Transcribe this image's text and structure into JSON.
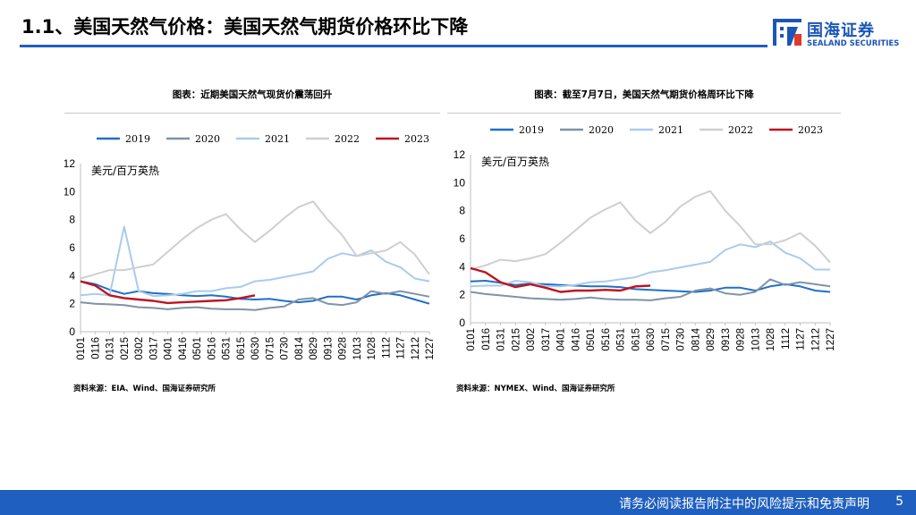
{
  "slide": {
    "title": "1.1、美国天然气价格：美国天然气期货价格环比下降",
    "disclaimer": "请务必阅读报告附注中的风险提示和免责声明",
    "page_number": "5"
  },
  "logo": {
    "cn": "国海证券",
    "en": "SEALAND SECURITIES",
    "color": "#1a56b8"
  },
  "colors": {
    "accent": "#1f5fbf"
  },
  "chart_data": [
    {
      "type": "line",
      "title": "图表：近期美国天然气现货价震荡回升",
      "unit_label": "美元/百万英热",
      "source": "资料来源：EIA、Wind、国海证券研究所",
      "ylim": [
        0,
        12
      ],
      "yticks": [
        "0",
        "2",
        "4",
        "6",
        "8",
        "10",
        "12"
      ],
      "categories": [
        "0101",
        "0116",
        "0131",
        "0215",
        "0302",
        "0317",
        "0401",
        "0416",
        "0501",
        "0516",
        "0531",
        "0615",
        "0630",
        "0715",
        "0730",
        "0814",
        "0829",
        "0913",
        "0928",
        "1013",
        "1028",
        "1112",
        "1127",
        "1212",
        "1227"
      ],
      "series": [
        {
          "name": "2019",
          "color": "#1f70c8",
          "values": [
            3.6,
            3.4,
            3.0,
            2.7,
            2.9,
            2.75,
            2.7,
            2.6,
            2.55,
            2.6,
            2.5,
            2.35,
            2.3,
            2.35,
            2.2,
            2.1,
            2.2,
            2.5,
            2.5,
            2.3,
            2.6,
            2.75,
            2.6,
            2.3,
            2.0
          ]
        },
        {
          "name": "2020",
          "color": "#7f93a8",
          "values": [
            2.1,
            2.0,
            1.95,
            1.9,
            1.75,
            1.7,
            1.6,
            1.7,
            1.75,
            1.65,
            1.6,
            1.6,
            1.55,
            1.7,
            1.8,
            2.3,
            2.4,
            2.0,
            1.9,
            2.1,
            2.9,
            2.7,
            2.9,
            2.7,
            2.5
          ]
        },
        {
          "name": "2021",
          "color": "#a9cbed",
          "values": [
            2.6,
            2.7,
            2.6,
            7.5,
            2.9,
            2.55,
            2.6,
            2.7,
            2.9,
            2.9,
            3.1,
            3.2,
            3.6,
            3.7,
            3.9,
            4.1,
            4.3,
            5.2,
            5.6,
            5.4,
            5.8,
            5.0,
            4.6,
            3.8,
            3.6
          ]
        },
        {
          "name": "2022",
          "color": "#cfcfcf",
          "values": [
            3.8,
            4.1,
            4.4,
            4.4,
            4.6,
            4.8,
            5.7,
            6.6,
            7.4,
            8.0,
            8.4,
            7.3,
            6.4,
            7.2,
            8.1,
            8.9,
            9.3,
            8.0,
            6.9,
            5.4,
            5.6,
            5.8,
            6.4,
            5.5,
            4.1
          ]
        },
        {
          "name": "2023",
          "color": "#c0131f",
          "values": [
            3.6,
            3.3,
            2.6,
            2.4,
            2.3,
            2.2,
            2.05,
            2.1,
            2.15,
            2.2,
            2.25,
            2.4,
            2.6,
            null,
            null,
            null,
            null,
            null,
            null,
            null,
            null,
            null,
            null,
            null,
            null
          ]
        }
      ]
    },
    {
      "type": "line",
      "title": "图表：截至7月7日，美国天然气期货价格周环比下降",
      "unit_label": "美元/百万英热",
      "source": "资料来源：NYMEX、Wind、国海证券研究所",
      "ylim": [
        0,
        12
      ],
      "yticks": [
        "0",
        "2",
        "4",
        "6",
        "8",
        "10",
        "12"
      ],
      "categories": [
        "0101",
        "0116",
        "0131",
        "0215",
        "0302",
        "0317",
        "0401",
        "0416",
        "0501",
        "0516",
        "0531",
        "0615",
        "0630",
        "0715",
        "0730",
        "0814",
        "0829",
        "0913",
        "0928",
        "1013",
        "1028",
        "1112",
        "1127",
        "1212",
        "1227"
      ],
      "series": [
        {
          "name": "2019",
          "color": "#1f70c8",
          "values": [
            2.95,
            3.0,
            2.85,
            2.7,
            2.8,
            2.75,
            2.7,
            2.65,
            2.6,
            2.6,
            2.55,
            2.4,
            2.35,
            2.3,
            2.25,
            2.2,
            2.3,
            2.5,
            2.5,
            2.3,
            2.6,
            2.75,
            2.6,
            2.3,
            2.2
          ]
        },
        {
          "name": "2020",
          "color": "#7f93a8",
          "values": [
            2.2,
            2.05,
            1.95,
            1.85,
            1.75,
            1.7,
            1.65,
            1.7,
            1.8,
            1.7,
            1.65,
            1.65,
            1.6,
            1.75,
            1.85,
            2.3,
            2.45,
            2.1,
            2.0,
            2.2,
            3.1,
            2.7,
            2.9,
            2.75,
            2.6
          ]
        },
        {
          "name": "2021",
          "color": "#a9cbed",
          "values": [
            2.6,
            2.65,
            2.65,
            3.0,
            2.9,
            2.6,
            2.6,
            2.7,
            2.9,
            2.95,
            3.1,
            3.25,
            3.6,
            3.75,
            3.95,
            4.15,
            4.35,
            5.2,
            5.6,
            5.4,
            5.8,
            5.0,
            4.6,
            3.8,
            3.8
          ]
        },
        {
          "name": "2022",
          "color": "#cfcfcf",
          "values": [
            3.8,
            4.1,
            4.5,
            4.4,
            4.6,
            4.9,
            5.7,
            6.6,
            7.5,
            8.1,
            8.6,
            7.3,
            6.4,
            7.2,
            8.3,
            9.0,
            9.4,
            8.0,
            6.9,
            5.6,
            5.6,
            5.9,
            6.4,
            5.5,
            4.3
          ]
        },
        {
          "name": "2023",
          "color": "#c0131f",
          "values": [
            3.9,
            3.6,
            2.9,
            2.55,
            2.75,
            2.5,
            2.2,
            2.3,
            2.3,
            2.35,
            2.3,
            2.6,
            2.65,
            null,
            null,
            null,
            null,
            null,
            null,
            null,
            null,
            null,
            null,
            null,
            null
          ]
        }
      ]
    }
  ]
}
